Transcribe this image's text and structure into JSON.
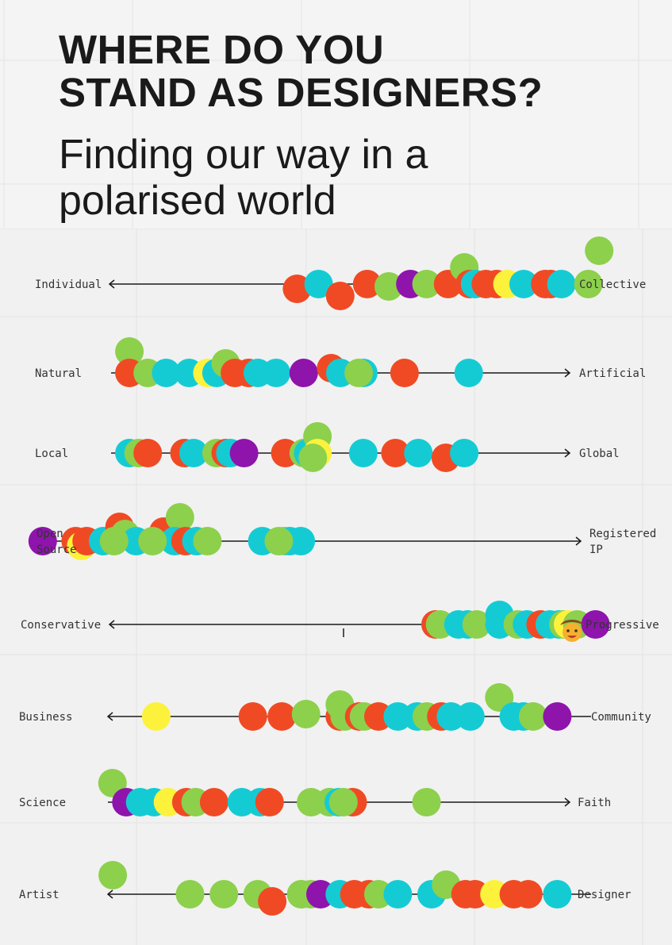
{
  "title": {
    "line1": "WHERE DO YOU",
    "line2": "STAND AS DESIGNERS?"
  },
  "subtitle": {
    "line1": "Finding our way in a",
    "line2": "polarised world"
  },
  "colors": {
    "red": "#f04a24",
    "cyan": "#14cbd4",
    "green": "#8dd04c",
    "yellow": "#fcf23c",
    "purple": "#8e14ac",
    "line": "#1a1a1a",
    "label": "#333333"
  },
  "chart_data": {
    "type": "scatter",
    "axes": [
      {
        "left_label": [
          "Individual"
        ],
        "right_label": [
          "Collective"
        ],
        "arrow": "left",
        "dots": [
          [
            "red",
            0.33,
            0.02
          ],
          [
            "cyan",
            0.37,
            0
          ],
          [
            "red",
            0.41,
            0.05
          ],
          [
            "red",
            0.46,
            0
          ],
          [
            "green",
            0.5,
            0.01
          ],
          [
            "purple",
            0.54,
            0
          ],
          [
            "green",
            0.57,
            0
          ],
          [
            "red",
            0.61,
            0
          ],
          [
            "green",
            0.64,
            -0.07
          ],
          [
            "red",
            0.65,
            0
          ],
          [
            "cyan",
            0.66,
            0
          ],
          [
            "red",
            0.68,
            0
          ],
          [
            "red",
            0.7,
            0
          ],
          [
            "yellow",
            0.72,
            0
          ],
          [
            "cyan",
            0.75,
            0
          ],
          [
            "red",
            0.79,
            0
          ],
          [
            "red",
            0.8,
            0
          ],
          [
            "cyan",
            0.82,
            0
          ],
          [
            "green",
            0.87,
            0
          ],
          [
            "green",
            0.89,
            -0.14
          ]
        ]
      },
      {
        "left_label": [
          "Natural"
        ],
        "right_label": [
          "Artificial"
        ],
        "arrow": "right",
        "dots": [
          [
            "green",
            0.04,
            -0.09
          ],
          [
            "red",
            0.04,
            0
          ],
          [
            "green",
            0.08,
            0
          ],
          [
            "cyan",
            0.12,
            0
          ],
          [
            "cyan",
            0.17,
            0
          ],
          [
            "yellow",
            0.21,
            0
          ],
          [
            "cyan",
            0.23,
            0
          ],
          [
            "green",
            0.25,
            -0.04
          ],
          [
            "red",
            0.27,
            0
          ],
          [
            "red",
            0.3,
            0
          ],
          [
            "cyan",
            0.32,
            0
          ],
          [
            "cyan",
            0.36,
            0
          ],
          [
            "purple",
            0.42,
            0
          ],
          [
            "red",
            0.48,
            -0.02
          ],
          [
            "cyan",
            0.5,
            0
          ],
          [
            "cyan",
            0.55,
            0
          ],
          [
            "green",
            0.54,
            0
          ],
          [
            "red",
            0.64,
            0
          ],
          [
            "cyan",
            0.78,
            0
          ]
        ]
      },
      {
        "left_label": [
          "Local"
        ],
        "right_label": [
          "Global"
        ],
        "arrow": "right",
        "dots": [
          [
            "cyan",
            0.04,
            0
          ],
          [
            "green",
            0.06,
            0
          ],
          [
            "red",
            0.08,
            0
          ],
          [
            "red",
            0.16,
            0
          ],
          [
            "cyan",
            0.18,
            0
          ],
          [
            "green",
            0.23,
            0
          ],
          [
            "red",
            0.25,
            0
          ],
          [
            "cyan",
            0.26,
            0
          ],
          [
            "purple",
            0.29,
            0
          ],
          [
            "red",
            0.38,
            0
          ],
          [
            "green",
            0.42,
            0
          ],
          [
            "cyan",
            0.43,
            0
          ],
          [
            "green",
            0.45,
            -0.07
          ],
          [
            "yellow",
            0.45,
            0
          ],
          [
            "green",
            0.44,
            0.02
          ],
          [
            "cyan",
            0.55,
            0
          ],
          [
            "red",
            0.62,
            0
          ],
          [
            "cyan",
            0.67,
            0
          ],
          [
            "red",
            0.73,
            0.02
          ],
          [
            "cyan",
            0.77,
            0
          ]
        ]
      },
      {
        "left_label": [
          "Open",
          "Source"
        ],
        "right_label": [
          "Registered",
          "IP"
        ],
        "arrow": "right",
        "dots": [
          [
            "purple",
            0.02,
            0
          ],
          [
            "red",
            0.08,
            0
          ],
          [
            "yellow",
            0.09,
            0.02
          ],
          [
            "red",
            0.1,
            0
          ],
          [
            "cyan",
            0.13,
            0
          ],
          [
            "red",
            0.16,
            -0.06
          ],
          [
            "green",
            0.17,
            -0.03
          ],
          [
            "cyan",
            0.19,
            0
          ],
          [
            "green",
            0.15,
            0
          ],
          [
            "red",
            0.24,
            -0.04
          ],
          [
            "green",
            0.27,
            -0.1
          ],
          [
            "cyan",
            0.26,
            0
          ],
          [
            "green",
            0.22,
            0
          ],
          [
            "red",
            0.28,
            0
          ],
          [
            "cyan",
            0.3,
            0
          ],
          [
            "green",
            0.32,
            0
          ],
          [
            "cyan",
            0.42,
            0
          ],
          [
            "green",
            0.46,
            0
          ],
          [
            "cyan",
            0.47,
            0
          ],
          [
            "cyan",
            0.49,
            0
          ],
          [
            "green",
            0.45,
            0
          ]
        ]
      },
      {
        "left_label": [
          "Conservative"
        ],
        "right_label": [
          "Progressive"
        ],
        "arrow": "left",
        "dots": [
          [
            "red",
            0.71,
            0
          ],
          [
            "green",
            0.72,
            0
          ],
          [
            "cyan",
            0.76,
            0
          ],
          [
            "cyan",
            0.78,
            0
          ],
          [
            "green",
            0.8,
            0
          ],
          [
            "cyan",
            0.85,
            -0.04
          ],
          [
            "cyan",
            0.85,
            0
          ],
          [
            "green",
            0.89,
            0
          ],
          [
            "cyan",
            0.91,
            0
          ],
          [
            "red",
            0.94,
            0
          ],
          [
            "cyan",
            0.96,
            0
          ],
          [
            "cyan",
            0.98,
            0
          ],
          [
            "green",
            0.99,
            0
          ],
          [
            "yellow",
            1.0,
            0
          ],
          [
            "green",
            1.02,
            0
          ],
          [
            "purple",
            1.06,
            0
          ]
        ]
      },
      {
        "left_label": [
          "Business"
        ],
        "right_label": [
          "Community"
        ],
        "arrow": "left",
        "dots": [
          [
            "yellow",
            0.1,
            0
          ],
          [
            "red",
            0.3,
            0
          ],
          [
            "red",
            0.36,
            0
          ],
          [
            "green",
            0.41,
            -0.01
          ],
          [
            "red",
            0.48,
            0
          ],
          [
            "green",
            0.48,
            -0.05
          ],
          [
            "green",
            0.49,
            0
          ],
          [
            "red",
            0.52,
            0
          ],
          [
            "green",
            0.53,
            0
          ],
          [
            "red",
            0.56,
            0
          ],
          [
            "cyan",
            0.6,
            0
          ],
          [
            "cyan",
            0.64,
            0
          ],
          [
            "green",
            0.66,
            0
          ],
          [
            "red",
            0.69,
            0
          ],
          [
            "cyan",
            0.71,
            0
          ],
          [
            "cyan",
            0.75,
            0
          ],
          [
            "green",
            0.81,
            -0.08
          ],
          [
            "cyan",
            0.84,
            0
          ],
          [
            "cyan",
            0.86,
            0
          ],
          [
            "green",
            0.88,
            0
          ],
          [
            "purple",
            0.93,
            0
          ]
        ]
      },
      {
        "left_label": [
          "Science"
        ],
        "right_label": [
          "Faith"
        ],
        "arrow": "right",
        "dots": [
          [
            "green",
            0.01,
            -0.08
          ],
          [
            "purple",
            0.04,
            0
          ],
          [
            "cyan",
            0.07,
            0
          ],
          [
            "cyan",
            0.1,
            0
          ],
          [
            "yellow",
            0.13,
            0
          ],
          [
            "red",
            0.17,
            0
          ],
          [
            "green",
            0.19,
            0
          ],
          [
            "red",
            0.23,
            0
          ],
          [
            "cyan",
            0.29,
            0
          ],
          [
            "cyan",
            0.33,
            0
          ],
          [
            "red",
            0.35,
            0
          ],
          [
            "green",
            0.44,
            0
          ],
          [
            "cyan",
            0.48,
            0
          ],
          [
            "green",
            0.48,
            0
          ],
          [
            "cyan",
            0.5,
            0
          ],
          [
            "red",
            0.53,
            0
          ],
          [
            "green",
            0.51,
            0
          ],
          [
            "green",
            0.69,
            0
          ]
        ]
      },
      {
        "left_label": [
          "Artist"
        ],
        "right_label": [
          "Designer"
        ],
        "arrow": "left",
        "dots": [
          [
            "green",
            0.01,
            -0.08
          ],
          [
            "green",
            0.17,
            0
          ],
          [
            "green",
            0.24,
            0
          ],
          [
            "green",
            0.31,
            0
          ],
          [
            "red",
            0.34,
            0.03
          ],
          [
            "green",
            0.4,
            0
          ],
          [
            "green",
            0.42,
            0
          ],
          [
            "purple",
            0.44,
            0
          ],
          [
            "cyan",
            0.48,
            0
          ],
          [
            "red",
            0.51,
            0
          ],
          [
            "red",
            0.54,
            0
          ],
          [
            "green",
            0.56,
            0
          ],
          [
            "cyan",
            0.6,
            0
          ],
          [
            "cyan",
            0.67,
            0
          ],
          [
            "green",
            0.7,
            -0.04
          ],
          [
            "red",
            0.74,
            0
          ],
          [
            "red",
            0.76,
            0
          ],
          [
            "yellow",
            0.8,
            0
          ],
          [
            "red",
            0.84,
            0
          ],
          [
            "red",
            0.87,
            0
          ],
          [
            "cyan",
            0.93,
            0
          ]
        ]
      }
    ]
  }
}
